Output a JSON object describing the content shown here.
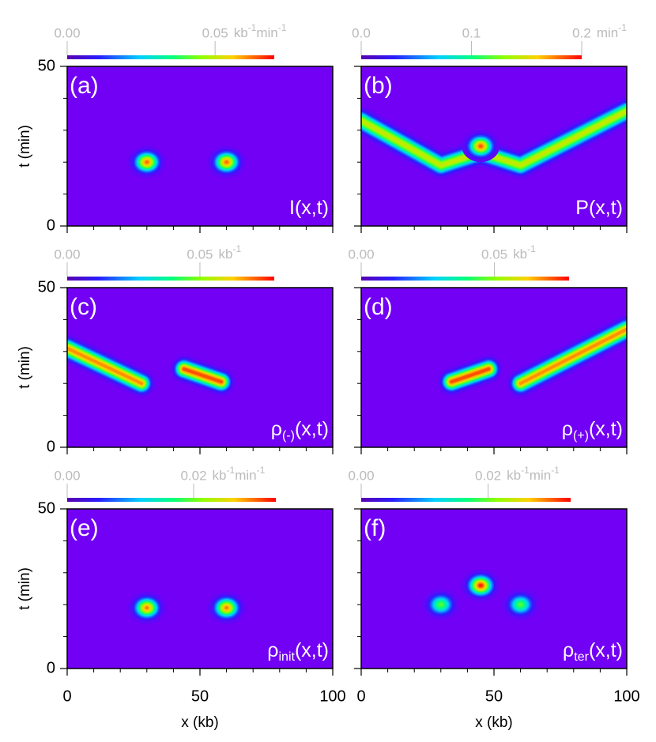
{
  "chart_data": [
    {
      "type": "heatmap",
      "panel_label": "(a)",
      "function": {
        "main": "I(x,t)"
      },
      "ylabel": "t (min)",
      "xlim": [
        0,
        100
      ],
      "ylim": [
        0,
        50
      ],
      "xticks": [
        0,
        50,
        100
      ],
      "yticks": [
        0,
        50
      ],
      "xminorticks": [
        10,
        20,
        30,
        40,
        60,
        70,
        80,
        90
      ],
      "yminorticks": [
        10,
        20,
        30,
        40
      ],
      "colorbar": {
        "lim": [
          0,
          0.07
        ],
        "ticks": [
          {
            "value": 0,
            "label": "0.00"
          },
          0.05
        ],
        "unit": [
          [
            "kb",
            "-1"
          ],
          [
            "min",
            "-1"
          ]
        ]
      },
      "peaks": [
        {
          "x": 30,
          "t": 20,
          "value": 0.065
        },
        {
          "x": 60,
          "t": 20,
          "value": 0.065
        }
      ],
      "ridges": []
    },
    {
      "type": "heatmap",
      "panel_label": "(b)",
      "function": {
        "main": "P(x,t)"
      },
      "xlim": [
        0,
        100
      ],
      "ylim": [
        0,
        50
      ],
      "xticks": [
        0,
        50,
        100
      ],
      "yticks": [
        0,
        50
      ],
      "xminorticks": [
        10,
        20,
        30,
        40,
        60,
        70,
        80,
        90
      ],
      "yminorticks": [
        10,
        20,
        30,
        40
      ],
      "colorbar": {
        "lim": [
          0,
          0.2
        ],
        "ticks": [
          {
            "value": 0,
            "label": "0.0"
          },
          0.1,
          0.2
        ],
        "unit": [
          [
            "min",
            "-1"
          ]
        ]
      },
      "peaks": [
        {
          "x": 45,
          "t": 25,
          "value": 0.19
        }
      ],
      "ridges": [
        {
          "x": [
            0,
            30,
            45,
            60,
            100
          ],
          "t": [
            33,
            19,
            23,
            19,
            36
          ],
          "value": 0.15
        }
      ]
    },
    {
      "type": "heatmap",
      "panel_label": "(c)",
      "function": {
        "main": "ρ",
        "sub": "(-)",
        "args": "(x,t)"
      },
      "ylabel": "t (min)",
      "xlim": [
        0,
        100
      ],
      "ylim": [
        0,
        50
      ],
      "xticks": [
        0,
        50,
        100
      ],
      "yticks": [
        0,
        50
      ],
      "xminorticks": [
        10,
        20,
        30,
        40,
        60,
        70,
        80,
        90
      ],
      "yminorticks": [
        10,
        20,
        30,
        40
      ],
      "colorbar": {
        "lim": [
          0,
          0.078
        ],
        "ticks": [
          {
            "value": 0,
            "label": "0.00"
          },
          0.05
        ],
        "unit": [
          [
            "kb",
            "-1"
          ]
        ]
      },
      "peaks": [],
      "ridges": [
        {
          "x": [
            0,
            28
          ],
          "t": [
            31,
            20
          ],
          "value": 0.07
        },
        {
          "x": [
            44,
            58
          ],
          "t": [
            24.5,
            20.5
          ],
          "value": 0.075
        }
      ]
    },
    {
      "type": "heatmap",
      "panel_label": "(d)",
      "function": {
        "main": "ρ",
        "sub": "(+)",
        "args": "(x,t)"
      },
      "xlim": [
        0,
        100
      ],
      "ylim": [
        0,
        50
      ],
      "xticks": [
        0,
        50,
        100
      ],
      "yticks": [
        0,
        50
      ],
      "xminorticks": [
        10,
        20,
        30,
        40,
        60,
        70,
        80,
        90
      ],
      "yminorticks": [
        10,
        20,
        30,
        40
      ],
      "colorbar": {
        "lim": [
          0,
          0.078
        ],
        "ticks": [
          {
            "value": 0,
            "label": "0.00"
          },
          0.05
        ],
        "unit": [
          [
            "kb",
            "-1"
          ]
        ]
      },
      "peaks": [],
      "ridges": [
        {
          "x": [
            34,
            48
          ],
          "t": [
            20.5,
            24.5
          ],
          "value": 0.075
        },
        {
          "x": [
            60,
            100
          ],
          "t": [
            20,
            37
          ],
          "value": 0.07
        }
      ]
    },
    {
      "type": "heatmap",
      "panel_label": "(e)",
      "function": {
        "main": "ρ",
        "sub": "init",
        "args": "(x,t)"
      },
      "xlabel": "x (kb)",
      "ylabel": "t (min)",
      "xlim": [
        0,
        100
      ],
      "ylim": [
        0,
        50
      ],
      "xticks": [
        0,
        50,
        100
      ],
      "yticks": [
        0,
        50
      ],
      "xminorticks": [
        10,
        20,
        30,
        40,
        60,
        70,
        80,
        90
      ],
      "yminorticks": [
        10,
        20,
        30,
        40
      ],
      "colorbar": {
        "lim": [
          0,
          0.033
        ],
        "ticks": [
          {
            "value": 0,
            "label": "0.00"
          },
          0.02
        ],
        "unit": [
          [
            "kb",
            "-1"
          ],
          [
            "min",
            "-1"
          ]
        ]
      },
      "peaks": [
        {
          "x": 30,
          "t": 19,
          "value": 0.03
        },
        {
          "x": 60,
          "t": 19,
          "value": 0.03
        }
      ],
      "ridges": []
    },
    {
      "type": "heatmap",
      "panel_label": "(f)",
      "function": {
        "main": "ρ",
        "sub": "ter",
        "args": "(x,t)"
      },
      "xlabel": "x (kb)",
      "xlim": [
        0,
        100
      ],
      "ylim": [
        0,
        50
      ],
      "xticks": [
        0,
        50,
        100
      ],
      "yticks": [
        0,
        50
      ],
      "xminorticks": [
        10,
        20,
        30,
        40,
        60,
        70,
        80,
        90
      ],
      "yminorticks": [
        10,
        20,
        30,
        40
      ],
      "colorbar": {
        "lim": [
          0,
          0.033
        ],
        "ticks": [
          {
            "value": 0,
            "label": "0.00"
          },
          0.02
        ],
        "unit": [
          [
            "kb",
            "-1"
          ],
          [
            "min",
            "-1"
          ]
        ]
      },
      "peaks": [
        {
          "x": 30,
          "t": 20,
          "value": 0.02
        },
        {
          "x": 45,
          "t": 26,
          "value": 0.033
        },
        {
          "x": 60,
          "t": 20,
          "value": 0.02
        }
      ],
      "ridges": []
    }
  ]
}
